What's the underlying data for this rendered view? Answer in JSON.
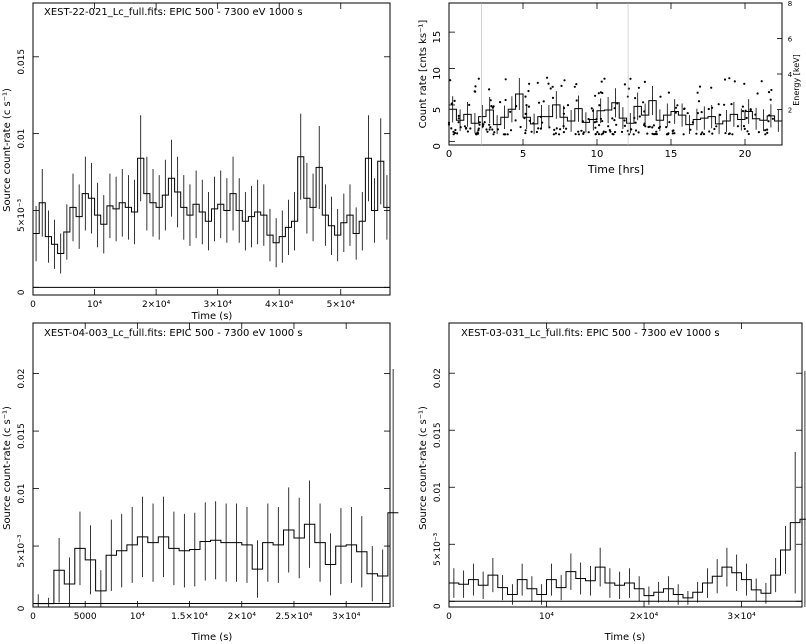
{
  "chart_data": [
    {
      "type": "step",
      "panel": "top-left",
      "title": "XEST-22-021_Lc_full.fits: EPIC  500 - 7300 eV  1000 s",
      "xlabel": "Time (s)",
      "ylabel": "Source count-rate (c s⁻¹)",
      "xlim": [
        0,
        58000
      ],
      "ylim": [
        -0.0005,
        0.0185
      ],
      "xticks": [
        {
          "v": 0,
          "label": "0"
        },
        {
          "v": 10000,
          "label": "10⁴"
        },
        {
          "v": 20000,
          "label": "2×10⁴"
        },
        {
          "v": 30000,
          "label": "3×10⁴"
        },
        {
          "v": 40000,
          "label": "4×10⁴"
        },
        {
          "v": 50000,
          "label": "5×10⁴"
        }
      ],
      "yticks": [
        {
          "v": 0,
          "label": "0"
        },
        {
          "v": 0.005,
          "label": "5×10⁻³"
        },
        {
          "v": 0.01,
          "label": "0.01"
        },
        {
          "v": 0.015,
          "label": "0.015"
        }
      ],
      "bin_width": 1000,
      "values": [
        0.0035,
        0.0055,
        0.0033,
        0.0028,
        0.0022,
        0.0036,
        0.0052,
        0.0046,
        0.0061,
        0.0058,
        0.0047,
        0.0041,
        0.0053,
        0.0051,
        0.0055,
        0.0052,
        0.0049,
        0.0084,
        0.0061,
        0.0055,
        0.0052,
        0.006,
        0.0071,
        0.0062,
        0.0052,
        0.0047,
        0.0054,
        0.0049,
        0.0043,
        0.0051,
        0.0054,
        0.005,
        0.0061,
        0.005,
        0.0043,
        0.0046,
        0.0049,
        0.0047,
        0.0034,
        0.0029,
        0.0033,
        0.0039,
        0.0043,
        0.0085,
        0.0058,
        0.0052,
        0.0078,
        0.0047,
        0.004,
        0.0034,
        0.0042,
        0.0047,
        0.0035,
        0.0043,
        0.0084,
        0.005,
        0.0082,
        0.0052
      ],
      "errors": [
        0.0018,
        0.0022,
        0.0017,
        0.0016,
        0.0013,
        0.0018,
        0.0022,
        0.0021,
        0.0024,
        0.0023,
        0.0021,
        0.0019,
        0.0021,
        0.0021,
        0.0022,
        0.0021,
        0.0021,
        0.0028,
        0.0024,
        0.0022,
        0.0021,
        0.0023,
        0.0025,
        0.0023,
        0.0021,
        0.002,
        0.0022,
        0.0021,
        0.0019,
        0.0021,
        0.0022,
        0.0021,
        0.0024,
        0.0021,
        0.0019,
        0.002,
        0.0021,
        0.002,
        0.0017,
        0.0016,
        0.0017,
        0.0018,
        0.0019,
        0.0028,
        0.0023,
        0.0022,
        0.0027,
        0.002,
        0.0019,
        0.0017,
        0.0019,
        0.002,
        0.0017,
        0.0019,
        0.0028,
        0.0021,
        0.0028,
        0.0021
      ]
    },
    {
      "type": "step-scatter",
      "panel": "top-right",
      "xlabel": "Time [hrs]",
      "ylabel": "Count rate [cnts ks⁻¹]",
      "ylabel2": "Energy [keV]",
      "xlim": [
        0,
        22.5
      ],
      "ylim": [
        -0.5,
        19
      ],
      "ylim2": [
        0,
        8
      ],
      "xticks": [
        {
          "v": 0,
          "label": "0"
        },
        {
          "v": 5,
          "label": "5"
        },
        {
          "v": 10,
          "label": "10"
        },
        {
          "v": 15,
          "label": "15"
        },
        {
          "v": 20,
          "label": "20"
        }
      ],
      "yticks": [
        {
          "v": 0,
          "label": "0"
        },
        {
          "v": 5,
          "label": "5"
        },
        {
          "v": 10,
          "label": "10"
        },
        {
          "v": 15,
          "label": "15"
        }
      ],
      "yticks2": [
        {
          "v": 2,
          "label": "2"
        },
        {
          "v": 4,
          "label": "4"
        },
        {
          "v": 6,
          "label": "6"
        },
        {
          "v": 8,
          "label": "8"
        }
      ],
      "bin_width": 0.5,
      "values": [
        4.4,
        2.9,
        3.7,
        2.5,
        3.4,
        4.3,
        2.3,
        3.3,
        4.4,
        6.5,
        3.3,
        2.4,
        3.4,
        3.4,
        5.0,
        3.3,
        2.8,
        4.5,
        2.6,
        3.0,
        4.2,
        4.3,
        5.3,
        3.2,
        2.5,
        4.8,
        3.6,
        5.6,
        2.9,
        3.6,
        4.1,
        3.6,
        2.3,
        3.0,
        3.2,
        3.4,
        2.4,
        2.8,
        3.7,
        3.0,
        4.1,
        3.1,
        2.9,
        3.5,
        2.8
      ],
      "errors": [
        1.8,
        1.5,
        1.7,
        1.4,
        1.6,
        1.8,
        1.3,
        1.6,
        1.8,
        2.2,
        1.6,
        1.4,
        1.6,
        1.6,
        1.9,
        1.6,
        1.5,
        1.8,
        1.4,
        1.5,
        1.7,
        1.8,
        2.0,
        1.5,
        1.4,
        1.9,
        1.6,
        2.0,
        1.5,
        1.6,
        1.7,
        1.6,
        1.3,
        1.5,
        1.6,
        1.6,
        1.4,
        1.5,
        1.7,
        1.5,
        1.7,
        1.5,
        1.5,
        1.6,
        1.5
      ]
    },
    {
      "type": "step",
      "panel": "bottom-left",
      "title": "XEST-04-003_Lc_full.fits: EPIC  500 - 7300 eV  1000 s",
      "xlabel": "Time (s)",
      "ylabel": "Source count-rate (c s⁻¹)",
      "xlim": [
        0,
        34200
      ],
      "ylim": [
        -0.0003,
        0.0244
      ],
      "xticks": [
        {
          "v": 0,
          "label": "0"
        },
        {
          "v": 5000,
          "label": "5000"
        },
        {
          "v": 10000,
          "label": "10⁴"
        },
        {
          "v": 15000,
          "label": "1.5×10⁴"
        },
        {
          "v": 20000,
          "label": "2×10⁴"
        },
        {
          "v": 25000,
          "label": "2.5×10⁴"
        },
        {
          "v": 30000,
          "label": "3×10⁴"
        }
      ],
      "yticks": [
        {
          "v": 0,
          "label": "0"
        },
        {
          "v": 0.005,
          "label": "5×10⁻³"
        },
        {
          "v": 0.01,
          "label": "0.01"
        },
        {
          "v": 0.015,
          "label": "0.015"
        },
        {
          "v": 0.02,
          "label": "0.02"
        }
      ],
      "bin_width": 1000,
      "values": [
        0.0,
        0.0,
        0.0029,
        0.0017,
        0.0048,
        0.0038,
        0.0011,
        0.0042,
        0.0046,
        0.0051,
        0.0058,
        0.0053,
        0.0058,
        0.0048,
        0.0046,
        0.0047,
        0.0054,
        0.0055,
        0.0053,
        0.0053,
        0.0051,
        0.003,
        0.0053,
        0.0051,
        0.0064,
        0.0057,
        0.0069,
        0.0053,
        0.0034,
        0.005,
        0.0051,
        0.0045,
        0.0026,
        0.0024,
        0.0079
      ],
      "errors": [
        0.0008,
        0.0005,
        0.0028,
        0.0023,
        0.0032,
        0.003,
        0.0018,
        0.0031,
        0.0032,
        0.0033,
        0.0035,
        0.0034,
        0.0035,
        0.0032,
        0.0032,
        0.0032,
        0.0034,
        0.0034,
        0.0034,
        0.0034,
        0.0033,
        0.0025,
        0.0034,
        0.0033,
        0.0037,
        0.0035,
        0.0038,
        0.0034,
        0.0027,
        0.0033,
        0.0033,
        0.0031,
        0.0024,
        0.0023,
        0.0125
      ]
    },
    {
      "type": "step",
      "panel": "bottom-right",
      "title": "XEST-03-031_Lc_full.fits: EPIC  500 - 7300 eV  1000 s",
      "xlabel": "Time (s)",
      "ylabel": "Source count-rate (c s⁻¹)",
      "xlim": [
        0,
        36200
      ],
      "ylim": [
        -0.0005,
        0.0244
      ],
      "xticks": [
        {
          "v": 0,
          "label": "0"
        },
        {
          "v": 10000,
          "label": "10⁴"
        },
        {
          "v": 20000,
          "label": "2×10⁴"
        },
        {
          "v": 30000,
          "label": "3×10⁴"
        }
      ],
      "yticks": [
        {
          "v": 0,
          "label": "0"
        },
        {
          "v": 0.005,
          "label": "5×10⁻³"
        },
        {
          "v": 0.01,
          "label": "0.01"
        },
        {
          "v": 0.015,
          "label": "0.015"
        },
        {
          "v": 0.02,
          "label": "0.02"
        }
      ],
      "bin_width": 1000,
      "values": [
        0.0016,
        0.0015,
        0.0019,
        0.0014,
        0.0023,
        0.0012,
        0.0006,
        0.0019,
        0.0011,
        0.0006,
        0.0019,
        0.0012,
        0.0026,
        0.002,
        0.0018,
        0.003,
        0.0016,
        0.0014,
        0.0016,
        0.0011,
        0.0005,
        0.0008,
        0.0011,
        0.0006,
        0.0003,
        0.0008,
        0.0016,
        0.0022,
        0.003,
        0.0025,
        0.0019,
        0.001,
        0.0007,
        0.0023,
        0.0045,
        0.0069,
        0.0072
      ],
      "errors": [
        0.0013,
        0.0012,
        0.0014,
        0.0012,
        0.0015,
        0.0011,
        0.0009,
        0.0014,
        0.0011,
        0.0009,
        0.0014,
        0.0011,
        0.0016,
        0.0014,
        0.0013,
        0.0017,
        0.0013,
        0.0012,
        0.0013,
        0.0011,
        0.0008,
        0.0009,
        0.0011,
        0.0009,
        0.0006,
        0.0009,
        0.0013,
        0.0015,
        0.0017,
        0.0016,
        0.0014,
        0.001,
        0.0009,
        0.0015,
        0.0021,
        0.0062,
        0.013
      ]
    }
  ]
}
